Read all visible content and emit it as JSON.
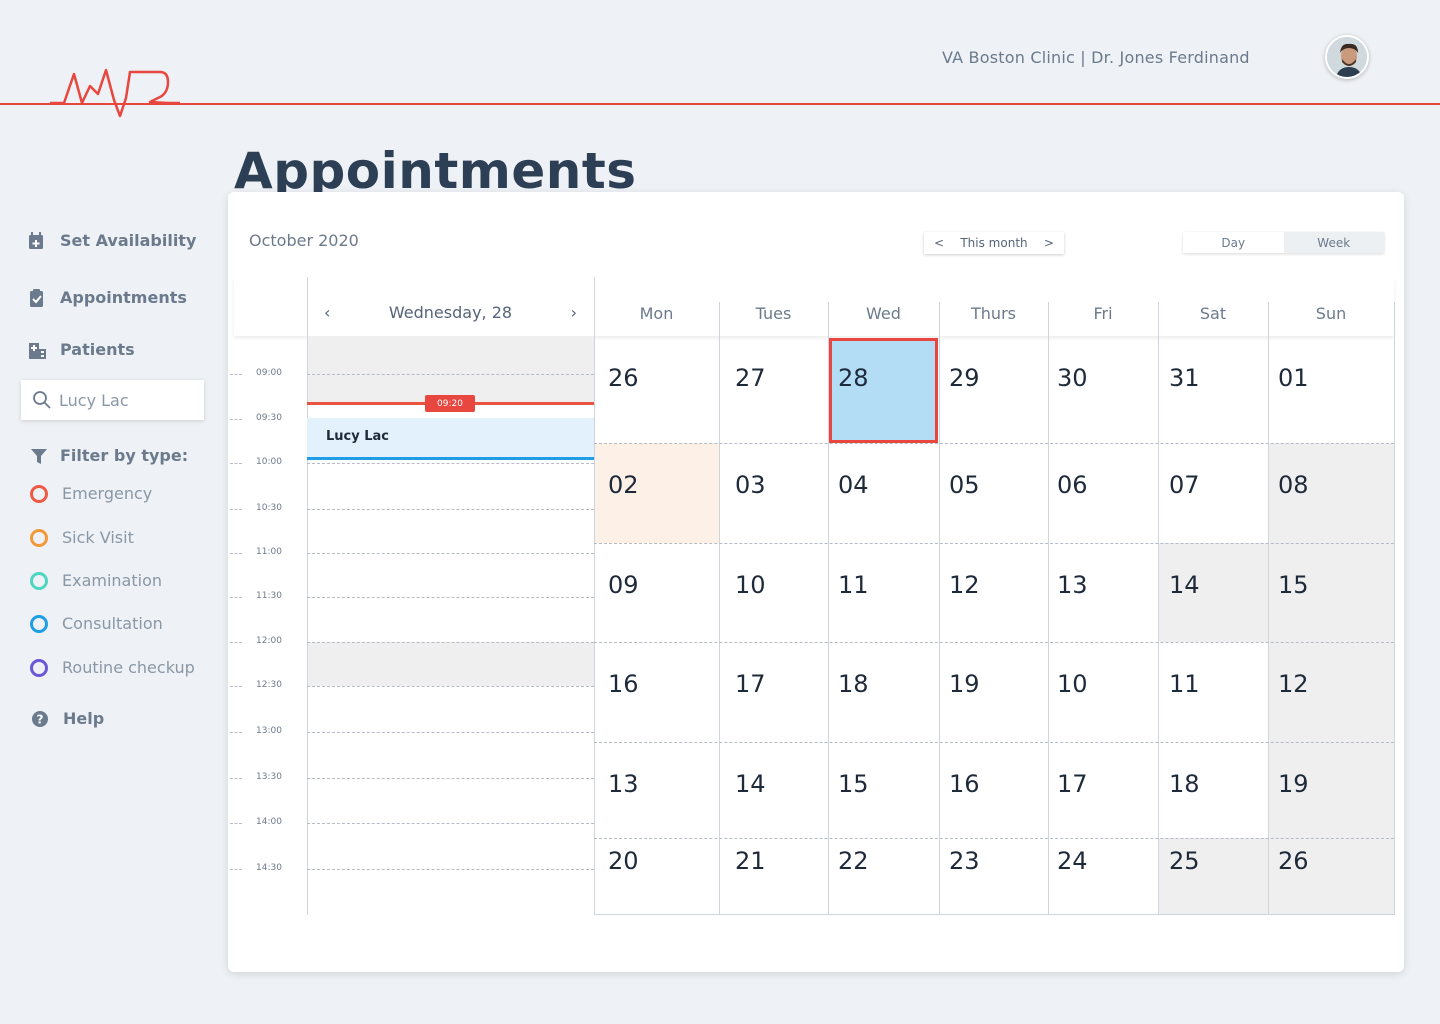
{
  "header": {
    "clinic_info": "VA Boston Clinic | Dr. Jones Ferdinand"
  },
  "page": {
    "title": "Appointments"
  },
  "sidebar": {
    "nav": [
      {
        "label": "Set Availability",
        "icon": "calendar-plus-icon"
      },
      {
        "label": "Appointments",
        "icon": "clipboard-check-icon"
      },
      {
        "label": "Patients",
        "icon": "hospital-building-icon"
      }
    ],
    "search": {
      "value": "Lucy Lac",
      "placeholder": "Search"
    },
    "filter_title": "Filter by type:",
    "filters": [
      {
        "label": "Emergency",
        "color": "#ef5a45"
      },
      {
        "label": "Sick Visit",
        "color": "#f29a38"
      },
      {
        "label": "Examination",
        "color": "#4fd6c3"
      },
      {
        "label": "Consultation",
        "color": "#1f9ee6"
      },
      {
        "label": "Routine checkup",
        "color": "#6a58d6"
      }
    ],
    "help": "Help"
  },
  "calendar": {
    "month_label": "October 2020",
    "nav": {
      "prev": "<",
      "label": "This month",
      "next": ">"
    },
    "views": {
      "day": "Day",
      "week": "Week"
    },
    "day_view": {
      "prev": "‹",
      "title": "Wednesday, 28",
      "next": "›",
      "times": [
        "09:00",
        "09:30",
        "10:00",
        "10:30",
        "11:00",
        "11:30",
        "12:00",
        "12:30",
        "13:00",
        "13:30",
        "14:00",
        "14:30"
      ],
      "current_time": "09:20",
      "appointment": {
        "patient": "Lucy Lac",
        "color": "#1f9ee6"
      }
    },
    "weekdays": [
      "Mon",
      "Tues",
      "Wed",
      "Thurs",
      "Fri",
      "Sat",
      "Sun"
    ],
    "weeks": [
      [
        "26",
        "27",
        "28",
        "29",
        "30",
        "31",
        "01"
      ],
      [
        "02",
        "03",
        "04",
        "05",
        "06",
        "07",
        "08"
      ],
      [
        "09",
        "10",
        "11",
        "12",
        "13",
        "14",
        "15"
      ],
      [
        "16",
        "17",
        "18",
        "19",
        "10",
        "11",
        "12"
      ],
      [
        "13",
        "14",
        "15",
        "16",
        "17",
        "18",
        "19"
      ],
      [
        "20",
        "21",
        "22",
        "23",
        "24",
        "25",
        "26"
      ]
    ],
    "selected_color": "#b3dcf5",
    "selected_border": "#e8473f",
    "highlight_color": "#fdf0e6",
    "unavailable_color": "#efefef"
  }
}
